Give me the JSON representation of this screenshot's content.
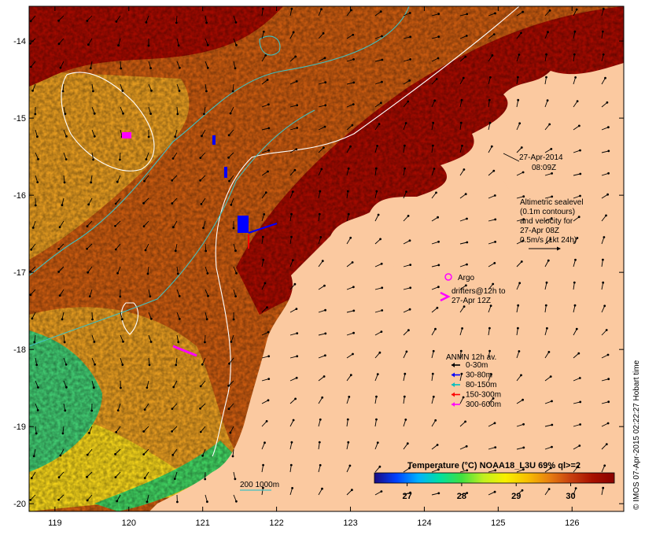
{
  "map": {
    "region": {
      "lon_min": 118.65,
      "lon_max": 126.7,
      "lat_min": -20.1,
      "lat_max": -13.55
    },
    "lon_ticks": [
      119,
      120,
      121,
      122,
      123,
      124,
      125,
      126
    ],
    "lat_ticks": [
      -14,
      -15,
      -16,
      -17,
      -18,
      -19,
      -20
    ],
    "colors": {
      "land": "#fbc9a0",
      "sst_warm": "#a30a00",
      "sst_mid": "#c85a10",
      "sst_cool": "#e39a20",
      "sst_cold": "#f2d21a",
      "contour_sealevel": "#ffffff",
      "isobath": "#40c0c0",
      "argo": "#ff00ff"
    }
  },
  "annotations": {
    "date_line1": "27-Apr-2014",
    "date_line2": "08:09Z",
    "altimetry": [
      "Altimetric sealevel",
      "(0.1m contours)",
      "and velocity for",
      "27-Apr 08Z",
      "0.5m/s (1kt 24h)"
    ],
    "argo_label": "Argo",
    "drifters_line1": "drifters@12h to",
    "drifters_line2": "27-Apr 12Z",
    "isobath_label": "200  1000m"
  },
  "anmn_legend": {
    "title": "ANMN 12h av.",
    "items": [
      {
        "label": "0-30m",
        "color": "#000000"
      },
      {
        "label": "30-80m",
        "color": "#0000ff"
      },
      {
        "label": "80-150m",
        "color": "#00c0c0"
      },
      {
        "label": "150-300m",
        "color": "#ff0000"
      },
      {
        "label": "300-600m",
        "color": "#ff00ff"
      }
    ]
  },
  "colorbar": {
    "title": "Temperature (°C) NOAA18_L3U 69% ql>=2",
    "ticks": [
      27,
      28,
      29,
      30
    ],
    "min": 26.4,
    "max": 30.8,
    "stops": [
      "#1a0a80",
      "#0040ff",
      "#00b0ff",
      "#00e0a0",
      "#40e040",
      "#c0f020",
      "#f8f000",
      "#f8c000",
      "#e88010",
      "#c84010",
      "#a81000",
      "#8a0000"
    ]
  },
  "side_text": "© IMOS 07-Apr-2015 02:22:27 Hobart time"
}
